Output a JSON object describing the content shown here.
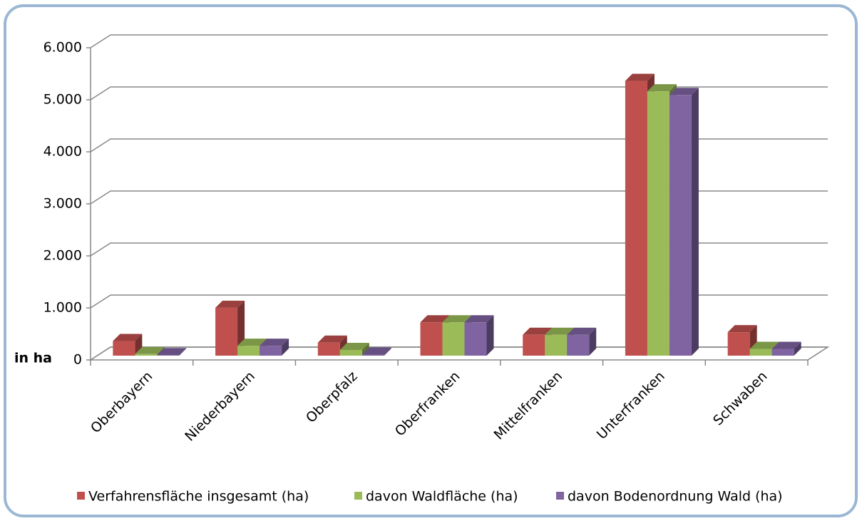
{
  "chart_data": {
    "type": "bar3d",
    "categories": [
      "Oberbayern",
      "Niederbayern",
      "Oberpfalz",
      "Oberfranken",
      "Mittelfranken",
      "Unterfranken",
      "Schwaben"
    ],
    "series": [
      {
        "name": "Verfahrensfläche  insgesamt (ha)",
        "color": "#c0504d",
        "values": [
          280,
          920,
          250,
          640,
          400,
          5280,
          450
        ]
      },
      {
        "name": "davon Waldfläche (ha)",
        "color": "#9bbb59",
        "values": [
          30,
          190,
          110,
          640,
          400,
          5080,
          130
        ]
      },
      {
        "name": "davon Bodenordnung Wald (ha)",
        "color": "#8064a2",
        "values": [
          10,
          190,
          20,
          640,
          400,
          5010,
          130
        ]
      }
    ],
    "y_label": "in ha",
    "ylim": [
      0,
      6000
    ],
    "yticks": [
      0,
      {
        "value": 1000,
        "label": "1.000"
      },
      {
        "value": 2000,
        "label": "2.000"
      },
      {
        "value": 3000,
        "label": "3.000"
      },
      {
        "value": 4000,
        "label": "4.000"
      },
      {
        "value": 5000,
        "label": "5.000"
      },
      {
        "value": 6000,
        "label": "6.000"
      }
    ],
    "grid": true
  }
}
